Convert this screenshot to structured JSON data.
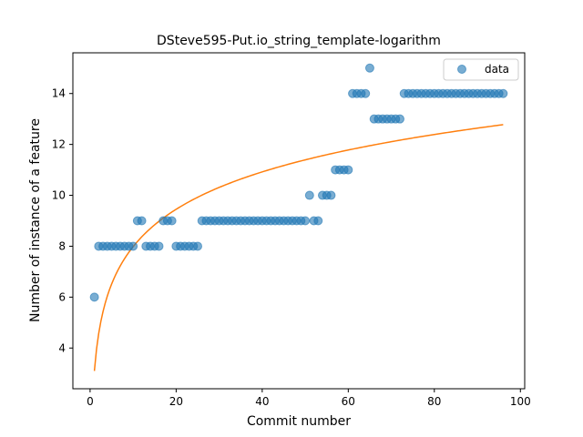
{
  "chart_data": {
    "type": "scatter",
    "title": "DSteve595-Put.io_string_template-logarithm",
    "xlabel": "Commit number",
    "ylabel": "Number of instance of a feature",
    "xlim": [
      -4,
      101
    ],
    "ylim": [
      2.4,
      15.6
    ],
    "xticks": [
      0,
      20,
      40,
      60,
      80,
      100
    ],
    "yticks": [
      4,
      6,
      8,
      10,
      12,
      14
    ],
    "grid": false,
    "legend_position": "top-right",
    "series": [
      {
        "name": "data",
        "kind": "scatter",
        "color": "#1f77b4",
        "x": [
          1,
          2,
          3,
          4,
          5,
          6,
          7,
          8,
          9,
          10,
          11,
          12,
          13,
          14,
          15,
          16,
          17,
          18,
          19,
          20,
          21,
          22,
          23,
          24,
          25,
          26,
          27,
          28,
          29,
          30,
          31,
          32,
          33,
          34,
          35,
          36,
          37,
          38,
          39,
          40,
          41,
          42,
          43,
          44,
          45,
          46,
          47,
          48,
          49,
          50,
          51,
          52,
          53,
          54,
          55,
          56,
          57,
          58,
          59,
          60,
          61,
          62,
          63,
          64,
          65,
          66,
          67,
          68,
          69,
          70,
          71,
          72,
          73,
          74,
          75,
          76,
          77,
          78,
          79,
          80,
          81,
          82,
          83,
          84,
          85,
          86,
          87,
          88,
          89,
          90,
          91,
          92,
          93,
          94,
          95,
          96
        ],
        "y": [
          6,
          8,
          8,
          8,
          8,
          8,
          8,
          8,
          8,
          8,
          9,
          9,
          8,
          8,
          8,
          8,
          9,
          9,
          9,
          8,
          8,
          8,
          8,
          8,
          8,
          9,
          9,
          9,
          9,
          9,
          9,
          9,
          9,
          9,
          9,
          9,
          9,
          9,
          9,
          9,
          9,
          9,
          9,
          9,
          9,
          9,
          9,
          9,
          9,
          9,
          10,
          9,
          9,
          10,
          10,
          10,
          11,
          11,
          11,
          11,
          14,
          14,
          14,
          14,
          15,
          13,
          13,
          13,
          13,
          13,
          13,
          13,
          14,
          14,
          14,
          14,
          14,
          14,
          14,
          14,
          14,
          14,
          14,
          14,
          14,
          14,
          14,
          14,
          14,
          14,
          14,
          14,
          14,
          14,
          14,
          14
        ]
      },
      {
        "name": "",
        "kind": "line",
        "color": "#ff7f0e",
        "fit": {
          "model": "a + b*ln(x)",
          "a": 3.1,
          "b": 2.12
        },
        "x_range": [
          1,
          96
        ]
      }
    ]
  }
}
